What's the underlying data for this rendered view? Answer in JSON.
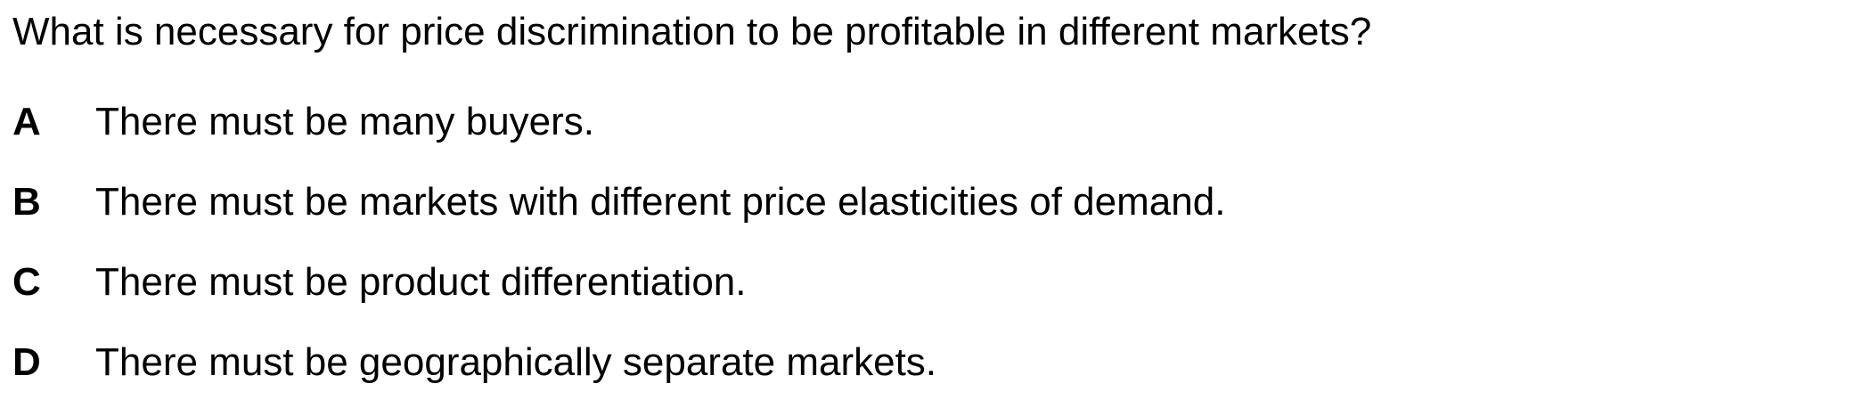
{
  "question": {
    "text": "What is necessary for price discrimination to be profitable in different markets?"
  },
  "options": [
    {
      "letter": "A",
      "text": "There must be many buyers."
    },
    {
      "letter": "B",
      "text": "There must be markets with different price elasticities of demand."
    },
    {
      "letter": "C",
      "text": "There must be product differentiation."
    },
    {
      "letter": "D",
      "text": "There must be geographically separate markets."
    }
  ]
}
